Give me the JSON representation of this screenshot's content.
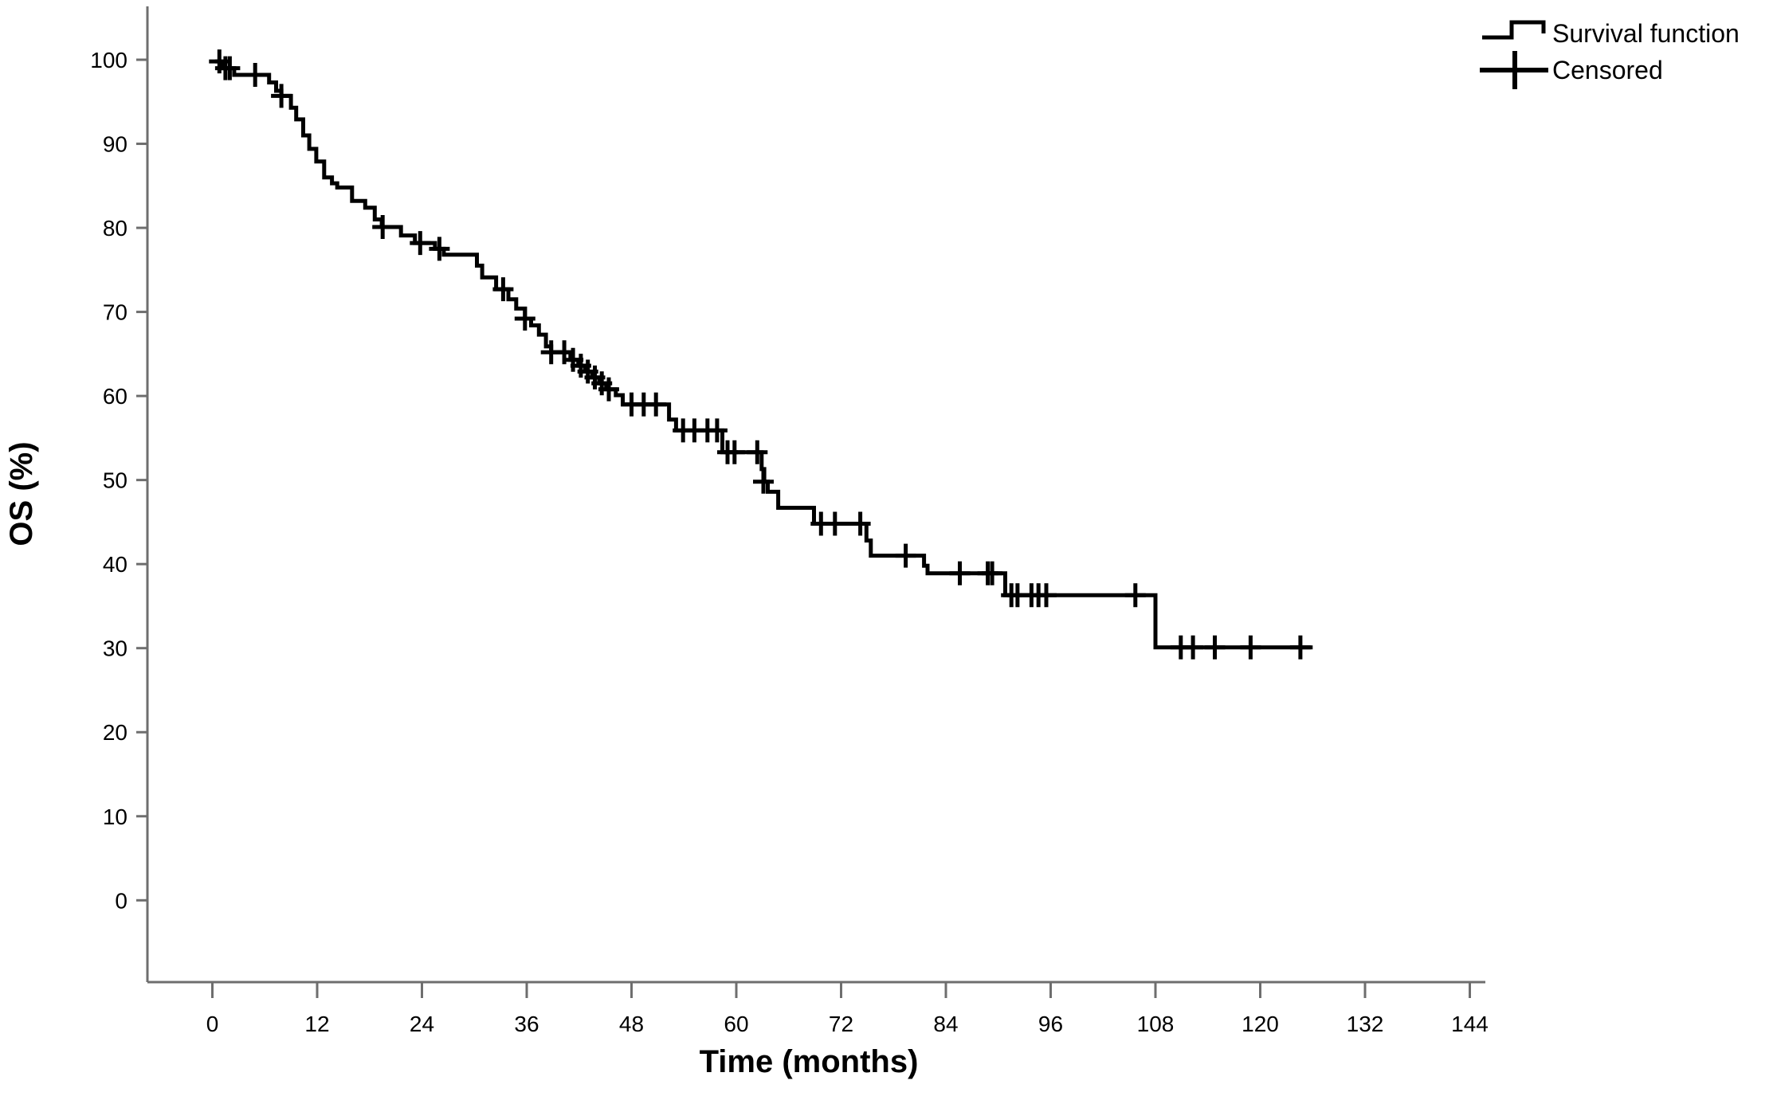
{
  "chart_data": {
    "type": "line",
    "subtype": "kaplan-meier-step",
    "title": "",
    "xlabel": "Time (months)",
    "ylabel": "OS (%)",
    "xlim": [
      0,
      144
    ],
    "ylim": [
      0,
      100
    ],
    "x_ticks": [
      0,
      12,
      24,
      36,
      48,
      60,
      72,
      84,
      96,
      108,
      120,
      132,
      144
    ],
    "y_ticks": [
      0,
      10,
      20,
      30,
      40,
      50,
      60,
      70,
      80,
      90,
      100
    ],
    "grid": false,
    "legend_position": "top-right",
    "series": [
      {
        "name": "Survival function",
        "type": "step",
        "end_month": 126.0,
        "points": [
          [
            0.3,
            99.8
          ],
          [
            1.2,
            99.0
          ],
          [
            2.5,
            98.2
          ],
          [
            6.5,
            97.3
          ],
          [
            7.3,
            96.3
          ],
          [
            7.9,
            95.7
          ],
          [
            9.0,
            94.3
          ],
          [
            9.6,
            92.9
          ],
          [
            10.4,
            91.0
          ],
          [
            11.1,
            89.4
          ],
          [
            11.9,
            87.9
          ],
          [
            12.8,
            86.0
          ],
          [
            13.7,
            85.3
          ],
          [
            14.3,
            84.8
          ],
          [
            16.0,
            83.2
          ],
          [
            17.5,
            82.4
          ],
          [
            18.6,
            81.0
          ],
          [
            19.4,
            80.1
          ],
          [
            21.6,
            79.1
          ],
          [
            23.2,
            78.2
          ],
          [
            25.5,
            77.5
          ],
          [
            26.5,
            76.8
          ],
          [
            30.3,
            75.5
          ],
          [
            30.9,
            74.1
          ],
          [
            32.5,
            72.7
          ],
          [
            33.9,
            71.5
          ],
          [
            34.8,
            70.4
          ],
          [
            35.8,
            69.2
          ],
          [
            36.5,
            68.4
          ],
          [
            37.4,
            67.3
          ],
          [
            38.2,
            65.9
          ],
          [
            38.8,
            65.2
          ],
          [
            41.0,
            64.3
          ],
          [
            41.9,
            63.6
          ],
          [
            42.7,
            62.9
          ],
          [
            43.5,
            62.2
          ],
          [
            44.3,
            61.5
          ],
          [
            45.1,
            60.8
          ],
          [
            46.2,
            60.1
          ],
          [
            47.0,
            59.0
          ],
          [
            52.3,
            57.2
          ],
          [
            53.1,
            55.9
          ],
          [
            58.4,
            53.3
          ],
          [
            62.9,
            51.3
          ],
          [
            63.2,
            49.8
          ],
          [
            63.6,
            48.6
          ],
          [
            64.8,
            46.7
          ],
          [
            68.9,
            44.8
          ],
          [
            74.9,
            42.8
          ],
          [
            75.4,
            41.0
          ],
          [
            81.5,
            39.8
          ],
          [
            81.9,
            38.9
          ],
          [
            90.8,
            36.3
          ],
          [
            108.0,
            30.1
          ]
        ]
      },
      {
        "name": "Censored",
        "type": "censor_marks",
        "points": [
          [
            0.8,
            99.8
          ],
          [
            1.5,
            99.0
          ],
          [
            2.0,
            99.0
          ],
          [
            4.9,
            98.2
          ],
          [
            7.9,
            95.7
          ],
          [
            19.5,
            80.1
          ],
          [
            23.8,
            78.2
          ],
          [
            26.0,
            77.5
          ],
          [
            33.3,
            72.7
          ],
          [
            35.8,
            69.2
          ],
          [
            38.8,
            65.2
          ],
          [
            40.3,
            65.2
          ],
          [
            41.3,
            64.3
          ],
          [
            42.2,
            63.6
          ],
          [
            43.0,
            62.9
          ],
          [
            43.8,
            62.2
          ],
          [
            44.6,
            61.5
          ],
          [
            45.4,
            60.8
          ],
          [
            48.0,
            59.0
          ],
          [
            49.4,
            59.0
          ],
          [
            50.8,
            59.0
          ],
          [
            53.9,
            55.9
          ],
          [
            55.2,
            55.9
          ],
          [
            56.7,
            55.9
          ],
          [
            57.8,
            55.9
          ],
          [
            59.0,
            53.3
          ],
          [
            59.8,
            53.3
          ],
          [
            62.4,
            53.3
          ],
          [
            63.1,
            49.8
          ],
          [
            69.7,
            44.8
          ],
          [
            71.3,
            44.8
          ],
          [
            74.2,
            44.8
          ],
          [
            79.4,
            41.0
          ],
          [
            85.6,
            38.9
          ],
          [
            88.8,
            38.9
          ],
          [
            89.3,
            38.9
          ],
          [
            91.5,
            36.3
          ],
          [
            92.2,
            36.3
          ],
          [
            93.8,
            36.3
          ],
          [
            94.6,
            36.3
          ],
          [
            95.5,
            36.3
          ],
          [
            105.7,
            36.3
          ],
          [
            110.9,
            30.1
          ],
          [
            112.3,
            30.1
          ],
          [
            114.8,
            30.1
          ],
          [
            118.9,
            30.1
          ],
          [
            124.6,
            30.1
          ]
        ]
      }
    ]
  },
  "legend": {
    "items": [
      {
        "label": "Survival function",
        "symbol": "step-line"
      },
      {
        "label": "Censored",
        "symbol": "plus"
      }
    ]
  },
  "colors": {
    "curve": "#000000",
    "axis": "#6e6e6e",
    "text": "#000000",
    "background": "#ffffff"
  }
}
